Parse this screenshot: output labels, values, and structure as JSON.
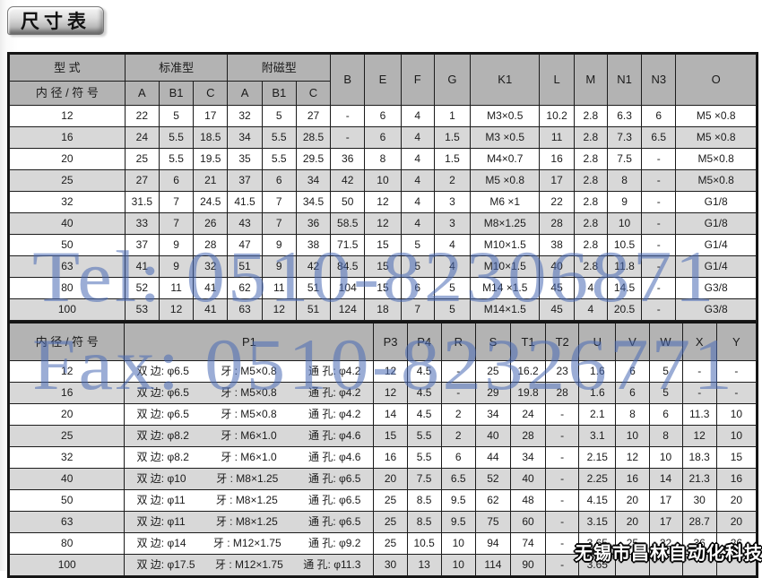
{
  "page_title": "尺寸表",
  "colors": {
    "header_bg": "#b3b3b3",
    "stripe_bg": "#d8d8d8",
    "watermark_blue": "rgba(72,106,180,0.55)"
  },
  "watermarks": {
    "tel": "Tel: 0510-82306871",
    "fax": "Fax: 0510-82326771",
    "company": "无锡市昌林自动化科技"
  },
  "table1": {
    "header": {
      "type_label": "型 式",
      "bore_label": "内 径 / 符 号",
      "standard_group": "标准型",
      "magnetic_group": "附磁型",
      "sub_cols": [
        "A",
        "B1",
        "C",
        "A",
        "B1",
        "C"
      ],
      "cols": [
        "B",
        "E",
        "F",
        "G",
        "K1",
        "L",
        "M",
        "N1",
        "N3",
        "O"
      ]
    },
    "rows": [
      {
        "bore": "12",
        "cells": [
          "22",
          "5",
          "17",
          "32",
          "5",
          "27",
          "-",
          "6",
          "4",
          "1",
          "M3×0.5",
          "10.2",
          "2.8",
          "6.3",
          "6",
          "M5 ×0.8"
        ]
      },
      {
        "bore": "16",
        "cells": [
          "24",
          "5.5",
          "18.5",
          "34",
          "5.5",
          "28.5",
          "-",
          "6",
          "4",
          "1.5",
          "M3 ×0.5",
          "11",
          "2.8",
          "7.3",
          "6.5",
          "M5 ×0.8"
        ]
      },
      {
        "bore": "20",
        "cells": [
          "25",
          "5.5",
          "19.5",
          "35",
          "5.5",
          "29.5",
          "36",
          "8",
          "4",
          "1.5",
          "M4×0.7",
          "16",
          "2.8",
          "7.5",
          "-",
          "M5×0.8"
        ]
      },
      {
        "bore": "25",
        "cells": [
          "27",
          "6",
          "21",
          "37",
          "6",
          "34",
          "42",
          "10",
          "4",
          "2",
          "M5 ×0.8",
          "17",
          "2.8",
          "8",
          "-",
          "M5×0.8"
        ]
      },
      {
        "bore": "32",
        "cells": [
          "31.5",
          "7",
          "24.5",
          "41.5",
          "7",
          "34.5",
          "50",
          "12",
          "4",
          "3",
          "M6 ×1",
          "22",
          "2.8",
          "9",
          "-",
          "G1/8"
        ]
      },
      {
        "bore": "40",
        "cells": [
          "33",
          "7",
          "26",
          "43",
          "7",
          "36",
          "58.5",
          "12",
          "4",
          "3",
          "M8×1.25",
          "28",
          "2.8",
          "10",
          "-",
          "G1/8"
        ]
      },
      {
        "bore": "50",
        "cells": [
          "37",
          "9",
          "28",
          "47",
          "9",
          "38",
          "71.5",
          "15",
          "5",
          "4",
          "M10×1.5",
          "38",
          "2.8",
          "10.5",
          "-",
          "G1/4"
        ]
      },
      {
        "bore": "63",
        "cells": [
          "41",
          "9",
          "32",
          "51",
          "9",
          "42",
          "84.5",
          "15",
          "5",
          "4",
          "M10×1.5",
          "40",
          "2.8",
          "11.8",
          "-",
          "G1/4"
        ]
      },
      {
        "bore": "80",
        "cells": [
          "52",
          "11",
          "41",
          "62",
          "11",
          "51",
          "104",
          "15",
          "6",
          "5",
          "M14 ×1.5",
          "45",
          "4",
          "14.5",
          "-",
          "G3/8"
        ]
      },
      {
        "bore": "100",
        "cells": [
          "53",
          "12",
          "41",
          "63",
          "12",
          "51",
          "124",
          "18",
          "7",
          "5",
          "M14×1.5",
          "45",
          "4",
          "20.5",
          "-",
          "G3/8"
        ]
      }
    ]
  },
  "table2": {
    "header": {
      "bore_label": "内 径 / 符 号",
      "p1_label": "P1",
      "cols": [
        "P3",
        "P4",
        "R",
        "S",
        "T1",
        "T2",
        "U",
        "V",
        "W",
        "X",
        "Y"
      ]
    },
    "rows": [
      {
        "bore": "12",
        "p1": {
          "side": "双 边: φ6.5",
          "thread": "牙 : M5×0.8",
          "through": "通 孔: φ4.2"
        },
        "cells": [
          "12",
          "4.5",
          "-",
          "25",
          "16.2",
          "23",
          "1.6",
          "6",
          "5",
          "-",
          "-"
        ]
      },
      {
        "bore": "16",
        "p1": {
          "side": "双 边: φ6.5",
          "thread": "牙 : M5×0.8",
          "through": "通 孔: φ4.2"
        },
        "cells": [
          "12",
          "4.5",
          "-",
          "29",
          "19.8",
          "28",
          "1.6",
          "6",
          "5",
          "-",
          "-"
        ]
      },
      {
        "bore": "20",
        "p1": {
          "side": "双 边: φ6.5",
          "thread": "牙 : M5×0.8",
          "through": "通 孔: φ4.2"
        },
        "cells": [
          "14",
          "4.5",
          "2",
          "34",
          "24",
          "-",
          "2.1",
          "8",
          "6",
          "11.3",
          "10"
        ]
      },
      {
        "bore": "25",
        "p1": {
          "side": "双 边: φ8.2",
          "thread": "牙 : M6×1.0",
          "through": "通 孔: φ4.6"
        },
        "cells": [
          "15",
          "5.5",
          "2",
          "40",
          "28",
          "-",
          "3.1",
          "10",
          "8",
          "12",
          "10"
        ]
      },
      {
        "bore": "32",
        "p1": {
          "side": "双 边: φ8.2",
          "thread": "牙 : M6×1.0",
          "through": "通 孔: φ4.6"
        },
        "cells": [
          "16",
          "5.5",
          "6",
          "44",
          "34",
          "-",
          "2.15",
          "12",
          "10",
          "18.3",
          "15"
        ]
      },
      {
        "bore": "40",
        "p1": {
          "side": "双 边: φ10",
          "thread": "牙 : M8×1.25",
          "through": "通 孔: φ6.5"
        },
        "cells": [
          "20",
          "7.5",
          "6.5",
          "52",
          "40",
          "-",
          "2.25",
          "16",
          "14",
          "21.3",
          "16"
        ]
      },
      {
        "bore": "50",
        "p1": {
          "side": "双 边: φ11",
          "thread": "牙 : M8×1.25",
          "through": "通 孔: φ6.5"
        },
        "cells": [
          "25",
          "8.5",
          "9.5",
          "62",
          "48",
          "-",
          "4.15",
          "20",
          "17",
          "30",
          "20"
        ]
      },
      {
        "bore": "63",
        "p1": {
          "side": "双 边: φ11",
          "thread": "牙 : M8×1.25",
          "through": "通 孔: φ6.5"
        },
        "cells": [
          "25",
          "8.5",
          "9.5",
          "75",
          "60",
          "-",
          "3.15",
          "20",
          "17",
          "28.7",
          "20"
        ]
      },
      {
        "bore": "80",
        "p1": {
          "side": "双 边: φ14",
          "thread": "牙 : M12×1.75",
          "through": "通 孔: φ9.2"
        },
        "cells": [
          "25",
          "10.5",
          "10",
          "94",
          "74",
          "-",
          "3.65",
          "25",
          "22",
          "36",
          "26"
        ]
      },
      {
        "bore": "100",
        "p1": {
          "side": "双 边: φ17.5",
          "thread": "牙 : M12×1.75",
          "through": "通 孔: φ11.3"
        },
        "cells": [
          "30",
          "13",
          "10",
          "114",
          "90",
          "-",
          "3.65",
          "",
          "",
          "",
          ""
        ]
      }
    ]
  }
}
